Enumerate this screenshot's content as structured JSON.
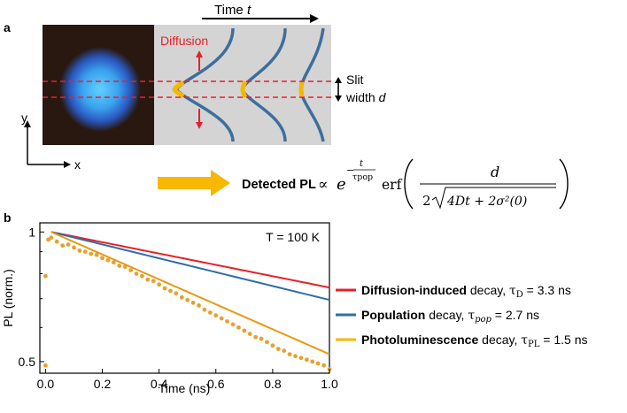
{
  "panel_a": {
    "label": "a",
    "time_axis": "Time",
    "time_symbol": "t",
    "diffusion_label": "Diffusion",
    "slit_label": "Slit",
    "slit_width_label": "width",
    "slit_width_symbol": "d",
    "y_axis": "y",
    "x_axis": "x",
    "formula": {
      "lhs": "Detected PL",
      "prop": "∝",
      "e": "e",
      "exp_minus": "−",
      "exp_num": "t",
      "exp_den": "τpop",
      "erf": "erf",
      "num": "d",
      "den_coef": "2",
      "den_root": "4Dt + 2σ²(0)"
    },
    "colors": {
      "diffusion": "#e8202a",
      "profile": "#3d6e9e",
      "highlight": "#f5b800",
      "arrow": "#f8b700",
      "panel_bg": "#d4d4d4",
      "image_bg": "#281810",
      "spot": "#49b6e8"
    }
  },
  "panel_b": {
    "label": "b",
    "annotation": "T = 100 K",
    "legend": [
      {
        "bold": "Diffusion-induced",
        "rest": " decay, ",
        "tau": "τD",
        "tau_main": "τ",
        "tau_sub": "D",
        "value": " = 3.3 ns",
        "color": "#e8202a"
      },
      {
        "bold": "Population",
        "rest": " decay, ",
        "tau": "τpop",
        "tau_main": "τ",
        "tau_sub": "pop",
        "value": " = 2.7 ns",
        "color": "#2f6ea5"
      },
      {
        "bold": "Photoluminescence",
        "rest": " decay, ",
        "tau": "τPL",
        "tau_main": "τ",
        "tau_sub": "PL",
        "value": " = 1.5 ns",
        "color": "#f5b800"
      }
    ]
  },
  "chart_data": {
    "type": "scatter",
    "title": "",
    "xlabel": "Time (ns)",
    "ylabel": "PL (norm.)",
    "xlim": [
      -0.02,
      1.0
    ],
    "ylim": [
      0.47,
      1.05
    ],
    "yscale": "log",
    "xticks": [
      0.0,
      0.2,
      0.4,
      0.6,
      0.8,
      1.0
    ],
    "xtick_labels": [
      "0.0",
      "0.2",
      "0.4",
      "0.6",
      "0.8",
      "1.0"
    ],
    "yticks": [
      0.5,
      1
    ],
    "ytick_labels": [
      "0.5",
      "1"
    ],
    "series": [
      {
        "name": "Diffusion-induced decay",
        "kind": "line",
        "color": "#e8202a",
        "tau_ns": 3.3,
        "x": [
          0.02,
          1.0
        ]
      },
      {
        "name": "Population decay",
        "kind": "line",
        "color": "#2f6ea5",
        "tau_ns": 2.7,
        "x": [
          0.02,
          1.0
        ]
      },
      {
        "name": "Photoluminescence decay",
        "kind": "line",
        "color": "#e69a10",
        "tau_ns": 1.5,
        "x": [
          0.02,
          1.0
        ]
      },
      {
        "name": "PL data",
        "kind": "scatter",
        "color": "#e8a030",
        "x": [
          0.0,
          0.0,
          0.01,
          0.02,
          0.04,
          0.06,
          0.08,
          0.1,
          0.12,
          0.14,
          0.16,
          0.18,
          0.2,
          0.22,
          0.24,
          0.26,
          0.28,
          0.3,
          0.32,
          0.34,
          0.36,
          0.38,
          0.4,
          0.42,
          0.44,
          0.46,
          0.48,
          0.5,
          0.52,
          0.54,
          0.56,
          0.58,
          0.6,
          0.62,
          0.64,
          0.66,
          0.68,
          0.7,
          0.72,
          0.74,
          0.76,
          0.78,
          0.8,
          0.82,
          0.84,
          0.86,
          0.88,
          0.9,
          0.92,
          0.94,
          0.96,
          0.98,
          1.0
        ],
        "y": [
          0.49,
          0.79,
          0.96,
          0.97,
          0.95,
          0.93,
          0.935,
          0.92,
          0.905,
          0.9,
          0.89,
          0.885,
          0.87,
          0.86,
          0.85,
          0.835,
          0.83,
          0.815,
          0.8,
          0.79,
          0.775,
          0.77,
          0.755,
          0.74,
          0.73,
          0.72,
          0.705,
          0.695,
          0.685,
          0.675,
          0.66,
          0.65,
          0.64,
          0.63,
          0.62,
          0.61,
          0.6,
          0.59,
          0.58,
          0.57,
          0.565,
          0.555,
          0.545,
          0.535,
          0.53,
          0.52,
          0.515,
          0.51,
          0.505,
          0.5,
          0.495,
          0.49,
          0.48
        ]
      }
    ]
  }
}
